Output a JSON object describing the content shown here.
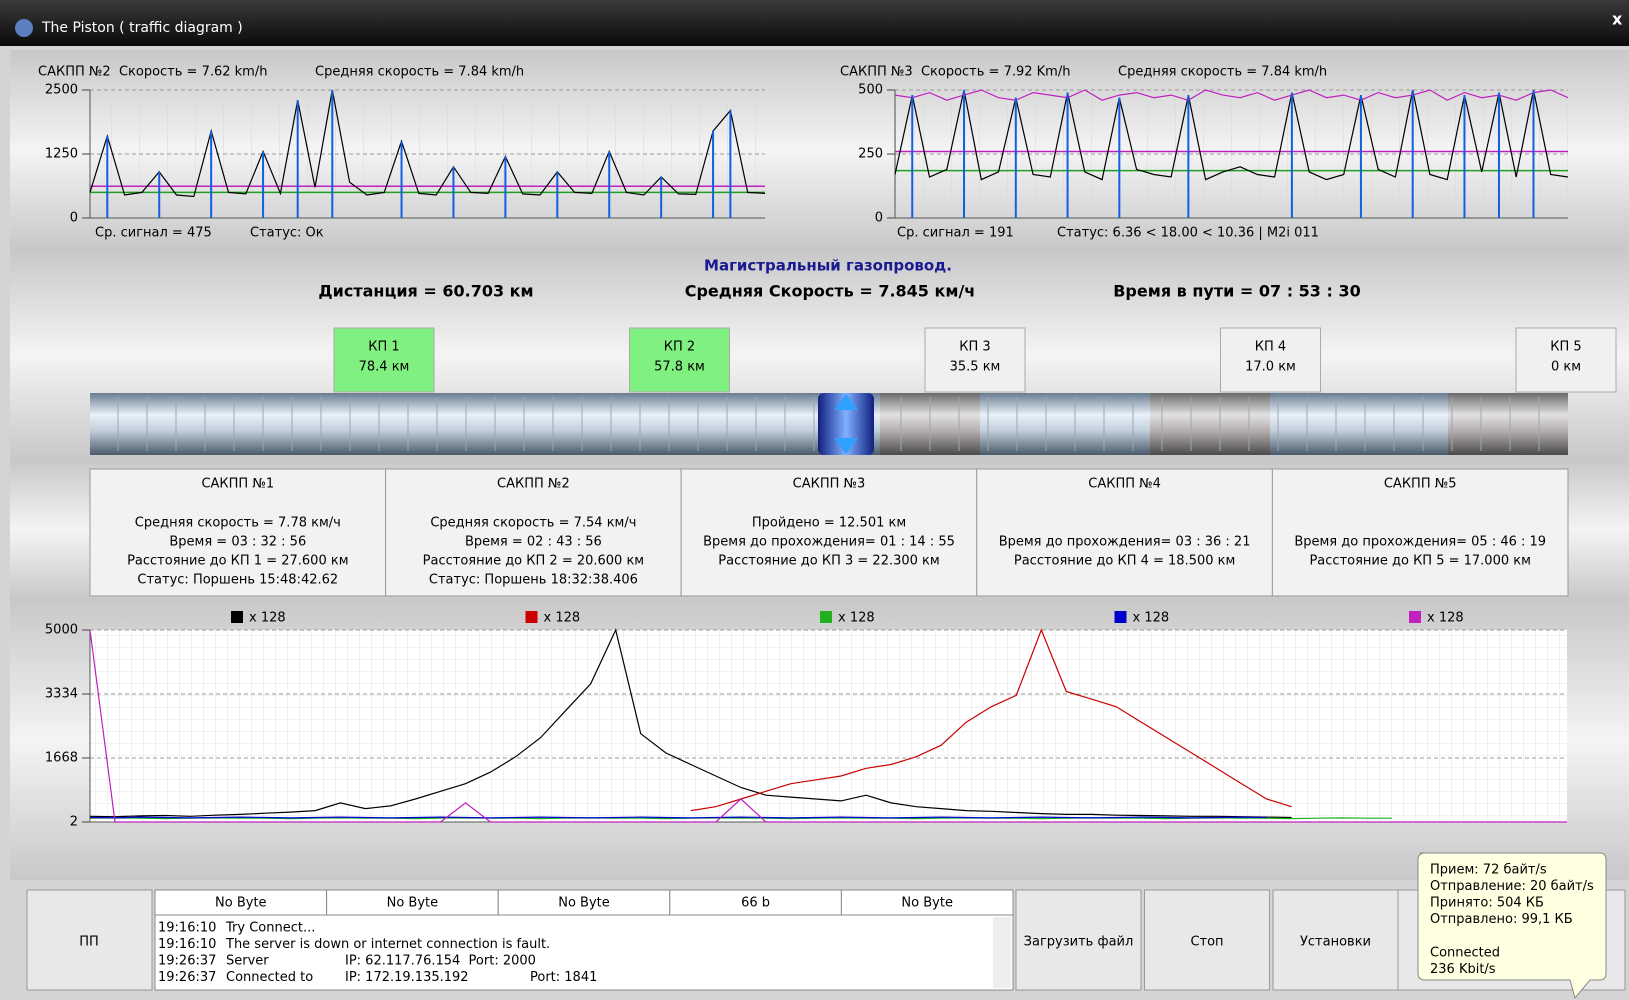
{
  "window": {
    "title": "The Piston ( traffic diagram )",
    "close": "x"
  },
  "chart_data": [
    {
      "type": "line",
      "title": "САКПП №2  Скорость = 7.62 km/h",
      "subtitle": "Средняя скорость = 7.84 km/h",
      "annotations": [
        "Ср. сигнал = 475",
        "Статус: Ок"
      ],
      "ylim": [
        0,
        2500
      ],
      "yticks": [
        0,
        1250,
        2500
      ],
      "grid": true,
      "hlines": [
        {
          "value": 620,
          "color": "#c020c0"
        },
        {
          "value": 500,
          "color": "#20a020"
        }
      ],
      "series": [
        {
          "color": "#000000",
          "style": "line",
          "values": [
            500,
            1600,
            450,
            500,
            900,
            450,
            420,
            1700,
            500,
            470,
            1300,
            480,
            2300,
            600,
            2500,
            700,
            450,
            500,
            1500,
            480,
            450,
            1000,
            500,
            480,
            1200,
            470,
            450,
            900,
            500,
            480,
            1300,
            500,
            450,
            800,
            470,
            460,
            1700,
            2100,
            500,
            480
          ]
        },
        {
          "color": "#1060e0",
          "style": "stem",
          "values": [
            null,
            1600,
            null,
            null,
            900,
            null,
            null,
            1700,
            null,
            null,
            1300,
            null,
            2300,
            null,
            2500,
            null,
            null,
            null,
            1500,
            null,
            null,
            1000,
            null,
            null,
            1200,
            null,
            null,
            900,
            null,
            null,
            1300,
            null,
            null,
            800,
            null,
            null,
            1700,
            2100,
            null,
            null
          ]
        }
      ]
    },
    {
      "type": "line",
      "title": "САКПП №3  Скорость = 7.92 Km/h",
      "subtitle": "Средняя скорость = 7.84 km/h",
      "annotations": [
        "Ср. сигнал = 191",
        "Статус: 6.36 < 18.00 < 10.36 | M2i 011"
      ],
      "ylim": [
        0,
        500
      ],
      "yticks": [
        0,
        250,
        500
      ],
      "grid": true,
      "hlines": [
        {
          "value": 260,
          "color": "#c020c0"
        },
        {
          "value": 185,
          "color": "#20a020"
        }
      ],
      "series": [
        {
          "color": "#000000",
          "style": "line",
          "values": [
            170,
            480,
            160,
            190,
            500,
            150,
            180,
            470,
            170,
            160,
            490,
            180,
            150,
            470,
            190,
            170,
            160,
            480,
            150,
            180,
            200,
            170,
            160,
            490,
            180,
            150,
            170,
            480,
            190,
            160,
            500,
            170,
            150,
            480,
            180,
            490,
            160,
            500,
            170,
            160
          ]
        },
        {
          "color": "#c020c0",
          "style": "line",
          "values": [
            480,
            470,
            490,
            460,
            480,
            500,
            470,
            460,
            490,
            480,
            470,
            500,
            460,
            480,
            490,
            470,
            480,
            460,
            500,
            480,
            470,
            490,
            460,
            480,
            500,
            470,
            480,
            460,
            490,
            470,
            480,
            500,
            460,
            490,
            470,
            480,
            460,
            490,
            500,
            470
          ]
        },
        {
          "color": "#1060e0",
          "style": "stem",
          "values": [
            null,
            480,
            null,
            null,
            500,
            null,
            null,
            470,
            null,
            null,
            490,
            null,
            null,
            470,
            null,
            null,
            null,
            480,
            null,
            null,
            null,
            null,
            null,
            490,
            null,
            null,
            null,
            480,
            null,
            null,
            500,
            null,
            null,
            480,
            null,
            490,
            null,
            500,
            null,
            null
          ]
        }
      ]
    },
    {
      "type": "line",
      "ylim": [
        2,
        5000
      ],
      "yticks": [
        2,
        1668,
        3334,
        5000
      ],
      "grid": true,
      "series": [
        {
          "name": "x 128",
          "color": "#000000",
          "style": "line",
          "values": [
            150,
            140,
            160,
            170,
            150,
            180,
            200,
            230,
            260,
            300,
            500,
            350,
            420,
            600,
            800,
            1000,
            1300,
            1700,
            2200,
            2900,
            3600,
            5000,
            2300,
            1800,
            1500,
            1200,
            900,
            700,
            650,
            600,
            550,
            700,
            500,
            400,
            350,
            300,
            280,
            250,
            220,
            200,
            200,
            180,
            170,
            160,
            150,
            150,
            140,
            130,
            120,
            null,
            null,
            null,
            null,
            null,
            null,
            null,
            null,
            null,
            null,
            null
          ]
        },
        {
          "name": "x 128",
          "color": "#cc0000",
          "style": "line",
          "values": [
            null,
            null,
            null,
            null,
            null,
            null,
            null,
            null,
            null,
            null,
            null,
            null,
            null,
            null,
            null,
            null,
            null,
            null,
            null,
            null,
            null,
            null,
            null,
            null,
            300,
            400,
            600,
            800,
            1000,
            1100,
            1200,
            1400,
            1500,
            1700,
            2000,
            2600,
            3000,
            3300,
            5000,
            3400,
            3200,
            3000,
            2600,
            2200,
            1800,
            1400,
            1000,
            600,
            400,
            null,
            null,
            null,
            null,
            null,
            null,
            null,
            null,
            null,
            null,
            null
          ]
        },
        {
          "name": "x 128",
          "color": "#20b020",
          "style": "line",
          "values": [
            100,
            110,
            100,
            90,
            100,
            110,
            100,
            100,
            90,
            100,
            110,
            100,
            100,
            90,
            100,
            110,
            100,
            100,
            90,
            100,
            110,
            100,
            100,
            90,
            100,
            110,
            100,
            100,
            90,
            100,
            110,
            100,
            100,
            90,
            100,
            110,
            100,
            100,
            90,
            100,
            110,
            100,
            100,
            90,
            100,
            110,
            100,
            100,
            90,
            100,
            110,
            100,
            100,
            null,
            null,
            null,
            null,
            null,
            null,
            null
          ]
        },
        {
          "name": "x 128",
          "color": "#0000cc",
          "style": "line",
          "values": [
            120,
            110,
            130,
            120,
            110,
            120,
            130,
            120,
            110,
            120,
            130,
            120,
            110,
            120,
            130,
            120,
            110,
            120,
            130,
            120,
            110,
            120,
            130,
            120,
            110,
            120,
            130,
            120,
            110,
            120,
            130,
            120,
            110,
            120,
            130,
            120,
            110,
            120,
            130,
            120,
            110,
            120,
            130,
            120,
            110,
            120,
            130,
            120,
            null,
            null,
            null,
            null,
            null,
            null,
            null,
            null,
            null,
            null,
            null,
            null
          ]
        },
        {
          "name": "x 128",
          "color": "#c020c0",
          "style": "line",
          "values": [
            5000,
            2,
            2,
            2,
            2,
            2,
            2,
            2,
            2,
            2,
            2,
            2,
            2,
            2,
            2,
            500,
            2,
            2,
            2,
            2,
            2,
            2,
            2,
            2,
            2,
            2,
            600,
            2,
            2,
            2,
            2,
            2,
            2,
            2,
            2,
            2,
            2,
            2,
            2,
            2,
            2,
            2,
            2,
            2,
            2,
            2,
            2,
            2,
            2,
            2,
            2,
            2,
            2,
            2,
            2,
            2,
            2,
            2,
            2,
            2
          ]
        }
      ]
    }
  ],
  "summary": {
    "heading": "Магистральный газопровод.",
    "distance": "Дистанция = 60.703 км",
    "speed": "Средняя Скорость = 7.845 км/ч",
    "time": "Время в пути = 07 : 53 : 30"
  },
  "checkpoints": [
    {
      "name": "КП 1",
      "dist": "78.4 км",
      "passed": true
    },
    {
      "name": "КП 2",
      "dist": "57.8 км",
      "passed": true
    },
    {
      "name": "КП 3",
      "dist": "35.5 км",
      "passed": false
    },
    {
      "name": "КП 4",
      "dist": "17.0 км",
      "passed": false
    },
    {
      "name": "КП 5",
      "dist": "0 км",
      "passed": false
    }
  ],
  "stations": [
    {
      "title": "САКПП №1",
      "lines": [
        "Средняя скорость = 7.78 км/ч",
        "Время = 03 : 32 : 56",
        "Расстояние до КП 1 = 27.600 км",
        "Статус: Поршень 15:48:42.62"
      ]
    },
    {
      "title": "САКПП №2",
      "lines": [
        "Средняя скорость = 7.54 км/ч",
        "Время = 02 : 43 : 56",
        "Расстояние до КП 2 = 20.600 км",
        "Статус: Поршень 18:32:38.406"
      ]
    },
    {
      "title": "САКПП №3",
      "lines": [
        "Пройдено = 12.501 км",
        "Время до прохождения= 01 : 14 : 55",
        "Расстояние до КП 3 = 22.300 км"
      ]
    },
    {
      "title": "САКПП №4",
      "lines": [
        "Время до прохождения= 03 : 36 : 21",
        "Расстояние до КП 4 = 18.500 км"
      ]
    },
    {
      "title": "САКПП №5",
      "lines": [
        "Время до прохождения= 05 : 46 : 19",
        "Расстояние до КП 5 = 17.000 км"
      ]
    }
  ],
  "bottom": {
    "pp": "ПП",
    "bytes": [
      "No Byte",
      "No Byte",
      "No Byte",
      "66 b",
      "No Byte"
    ],
    "log": [
      [
        "19:16:10",
        "Try Connect..."
      ],
      [
        "19:16:10",
        "The server is down or internet connection is fault."
      ],
      [
        "19:26:37",
        "Server",
        "IP: 62.117.76.154  Port: 2000"
      ],
      [
        "19:26:37",
        "Connected to",
        "IP: 172.19.135.192",
        "Port: 1841"
      ]
    ],
    "buttons": [
      "Загрузить файл",
      "Стоп",
      "Установки"
    ]
  },
  "tooltip": {
    "stats": [
      "Прием: 72 байт/s",
      "Отправление: 20 байт/s",
      "Принято: 504 КБ",
      "Отправлено: 99,1 КБ"
    ],
    "status": [
      "Connected",
      "236 Kbit/s"
    ]
  }
}
